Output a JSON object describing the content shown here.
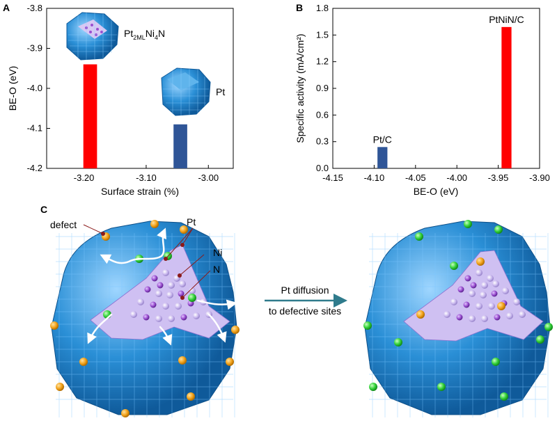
{
  "figure": {
    "panel_labels": [
      "A",
      "B",
      "C"
    ],
    "colors": {
      "red_bar": "#ff0000",
      "blue_bar": "#2f5597",
      "atom_blue": "#2a8fd6",
      "atom_purple": "#9a4fd0",
      "atom_lavender": "#c9b8ee",
      "atom_orange": "#f2a31c",
      "atom_green": "#34d23a",
      "arrow": "#2f7b8c"
    }
  },
  "chart_data": [
    {
      "panel": "A",
      "type": "bar",
      "xlabel": "Surface strain (%)",
      "ylabel": "BE-O (eV)",
      "xlim": [
        -3.26,
        -2.96
      ],
      "ylim": [
        -4.2,
        -3.8
      ],
      "xticks": [
        "-3.20",
        "-3.10",
        "-3.00"
      ],
      "xtick_values": [
        -3.2,
        -3.1,
        -3.0
      ],
      "yticks": [
        "-3.8",
        "-3.9",
        "-4.0",
        "-4.1",
        "-4.2"
      ],
      "ytick_values": [
        -3.8,
        -3.9,
        -4.0,
        -4.1,
        -4.2
      ],
      "baseline": -4.2,
      "bar_width": 0.022,
      "bars": [
        {
          "x": -3.19,
          "value": -3.94,
          "color": "#ff0000",
          "label_main": "Pt",
          "label_sub1": "2ML",
          "label_mid": "Ni",
          "label_sub2": "4",
          "label_end": "N"
        },
        {
          "x": -3.045,
          "value": -4.09,
          "color": "#2f5597",
          "label_main": "Pt",
          "label_sub1": "",
          "label_mid": "",
          "label_sub2": "",
          "label_end": ""
        }
      ],
      "grid": false
    },
    {
      "panel": "B",
      "type": "bar",
      "xlabel": "BE-O (eV)",
      "ylabel": "Specific activity (mA/cm²)",
      "xlim": [
        -4.15,
        -3.9
      ],
      "ylim": [
        0.0,
        1.8
      ],
      "xticks": [
        "-4.15",
        "-4.10",
        "-4.05",
        "-4.00",
        "-3.95",
        "-3.90"
      ],
      "xtick_values": [
        -4.15,
        -4.1,
        -4.05,
        -4.0,
        -3.95,
        -3.9
      ],
      "yticks": [
        "0.0",
        "0.3",
        "0.6",
        "0.9",
        "1.2",
        "1.5",
        "1.8"
      ],
      "ytick_values": [
        0.0,
        0.3,
        0.6,
        0.9,
        1.2,
        1.5,
        1.8
      ],
      "baseline": 0.0,
      "bar_width": 0.012,
      "bars": [
        {
          "x": -4.09,
          "value": 0.24,
          "color": "#2f5597",
          "label": "Pt/C"
        },
        {
          "x": -3.94,
          "value": 1.59,
          "color": "#ff0000",
          "label": "PtNiN/C"
        }
      ],
      "grid": false
    }
  ],
  "panel_c": {
    "labels": {
      "defect": "defect",
      "pt": "Pt",
      "ni": "Ni",
      "n": "N"
    },
    "arrow_text_line1": "Pt diffusion",
    "arrow_text_line2": "to defective sites"
  }
}
